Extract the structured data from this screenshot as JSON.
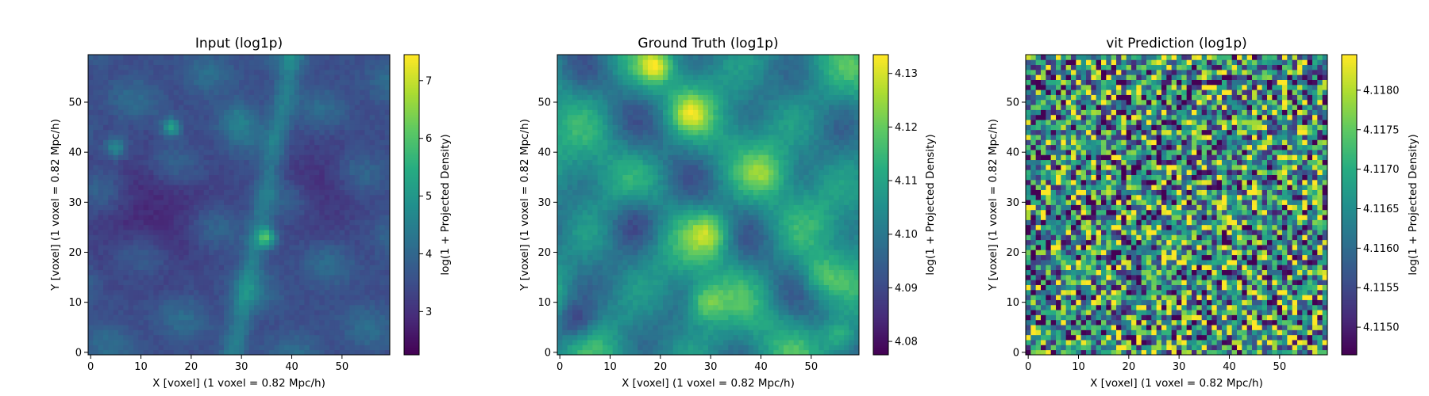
{
  "chart_data": [
    {
      "type": "heatmap",
      "title": "Input (log1p)",
      "xlabel": "X [voxel] (1 voxel = 0.82 Mpc/h)",
      "ylabel": "Y [voxel] (1 voxel = 0.82 Mpc/h)",
      "colorbar_label": "log(1 + Projected Density)",
      "colormap": "viridis",
      "grid_size": [
        60,
        60
      ],
      "xlim": [
        -0.5,
        59.5
      ],
      "ylim": [
        -0.5,
        59.5
      ],
      "xticks": [
        0,
        10,
        20,
        30,
        40,
        50
      ],
      "yticks": [
        0,
        10,
        20,
        30,
        40,
        50
      ],
      "color_range": [
        2.25,
        7.45
      ],
      "colorbar_ticks": [
        3,
        4,
        5,
        6,
        7
      ],
      "colorbar_tick_labels": [
        "3",
        "4",
        "5",
        "6",
        "7"
      ],
      "pattern": "filaments"
    },
    {
      "type": "heatmap",
      "title": "Ground Truth (log1p)",
      "xlabel": "X [voxel] (1 voxel = 0.82 Mpc/h)",
      "ylabel": "Y [voxel] (1 voxel = 0.82 Mpc/h)",
      "colorbar_label": "log(1 + Projected Density)",
      "colormap": "viridis",
      "grid_size": [
        60,
        60
      ],
      "xlim": [
        -0.5,
        59.5
      ],
      "ylim": [
        -0.5,
        59.5
      ],
      "xticks": [
        0,
        10,
        20,
        30,
        40,
        50
      ],
      "yticks": [
        0,
        10,
        20,
        30,
        40,
        50
      ],
      "color_range": [
        4.0775,
        4.1335
      ],
      "colorbar_ticks": [
        4.08,
        4.09,
        4.1,
        4.11,
        4.12,
        4.13
      ],
      "colorbar_tick_labels": [
        "4.08",
        "4.09",
        "4.10",
        "4.11",
        "4.12",
        "4.13"
      ],
      "pattern": "smooth"
    },
    {
      "type": "heatmap",
      "title": "vit Prediction (log1p)",
      "xlabel": "X [voxel] (1 voxel = 0.82 Mpc/h)",
      "ylabel": "Y [voxel] (1 voxel = 0.82 Mpc/h)",
      "colorbar_label": "log(1 + Projected Density)",
      "colormap": "viridis",
      "grid_size": [
        60,
        60
      ],
      "xlim": [
        -0.5,
        59.5
      ],
      "ylim": [
        -0.5,
        59.5
      ],
      "xticks": [
        0,
        10,
        20,
        30,
        40,
        50
      ],
      "yticks": [
        0,
        10,
        20,
        30,
        40,
        50
      ],
      "color_range": [
        4.11465,
        4.11845
      ],
      "colorbar_ticks": [
        4.115,
        4.1155,
        4.116,
        4.1165,
        4.117,
        4.1175,
        4.118
      ],
      "colorbar_tick_labels": [
        "4.1150",
        "4.1155",
        "4.1160",
        "4.1165",
        "4.1170",
        "4.1175",
        "4.1180"
      ],
      "pattern": "noise"
    }
  ]
}
